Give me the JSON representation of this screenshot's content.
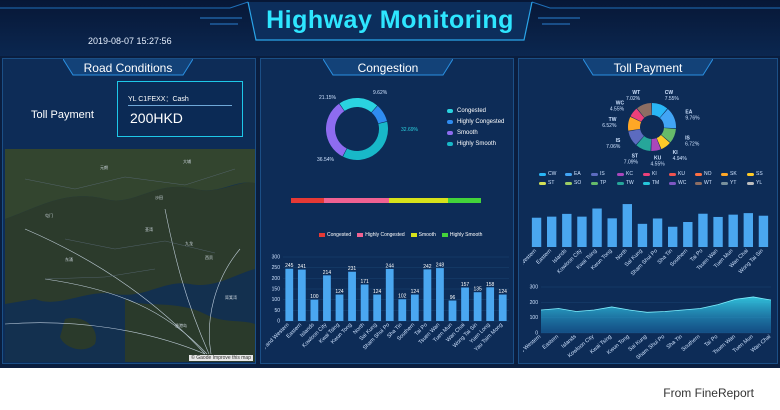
{
  "header": {
    "title": "Highway Monitoring",
    "datetime": "2019-08-07 15:27:56"
  },
  "road": {
    "title": "Road Conditions",
    "toll_label": "Toll Payment",
    "plate": "YL C1FEXX：Cash",
    "amount": "200HKD",
    "map_credit": "© Gaode Improve this map"
  },
  "congestion": {
    "title": "Congestion",
    "donut_legend": [
      "Congested",
      "Highly Congested",
      "Smooth",
      "Highly Smooth"
    ],
    "bar_legend": [
      "Congested",
      "Highly Congested",
      "Smooth",
      "Highly Smooth"
    ],
    "colors": {
      "congested": "#2ad3e0",
      "highly_congested": "#2f8cf0",
      "smooth": "#8e6cf0",
      "highly_smooth": "#18b8c8",
      "bar": "#4aa7f0"
    },
    "donut_labels": [
      "21.15%",
      "9.62%",
      "32.69%",
      "36.54%"
    ]
  },
  "toll": {
    "title": "Toll Payment",
    "pie_labels": [
      {
        "code": "WT",
        "pct": "7.02%"
      },
      {
        "code": "WC",
        "pct": "4.55%"
      },
      {
        "code": "CW",
        "pct": "7.55%"
      },
      {
        "code": "EA",
        "pct": "9.76%"
      },
      {
        "code": "IS",
        "pct": "6.72%"
      },
      {
        "code": "TW",
        "pct": "6.52%"
      },
      {
        "code": "KI",
        "pct": "4.94%"
      },
      {
        "code": "KU",
        "pct": "4.55%"
      },
      {
        "code": "ST",
        "pct": "7.09%"
      },
      {
        "code": "IS",
        "pct": "7.06%"
      }
    ],
    "legend": [
      "CW",
      "EA",
      "IS",
      "KC",
      "KI",
      "KU",
      "NO",
      "SK",
      "SS",
      "ST",
      "SO",
      "TP",
      "TW",
      "TM",
      "WC",
      "WT",
      "YT",
      "YL"
    ],
    "legend_colors": [
      "#29b6f6",
      "#42a5f5",
      "#5c6bc0",
      "#ab47bc",
      "#ec407a",
      "#ef5350",
      "#ff7043",
      "#ffa726",
      "#ffca28",
      "#d4e157",
      "#9ccc65",
      "#66bb6a",
      "#26a69a",
      "#26c6da",
      "#7e57c2",
      "#8d6e63",
      "#78909c",
      "#bdbdbd"
    ]
  },
  "chart_data": [
    {
      "type": "donut",
      "title": "Congestion",
      "labels": [
        "Congested",
        "Highly Congested",
        "Smooth",
        "Highly Smooth"
      ],
      "values": [
        21.15,
        9.62,
        32.69,
        36.54
      ]
    },
    {
      "type": "bar",
      "categories": [
        "Central and Western",
        "Eastern",
        "Islands",
        "Kowloon City",
        "Kwai Tsing",
        "Kwun Tong",
        "North",
        "Sai Kung",
        "Sham Shui Po",
        "Sha Tin",
        "Southern",
        "Tai Po",
        "Tsuen Wan",
        "Tuen Mun",
        "Wan Chai",
        "Wong Tai Sin",
        "Yuen Long",
        "Yau Tsim Mong"
      ],
      "values": [
        245,
        241,
        100,
        214,
        124,
        231,
        171,
        124,
        244,
        102,
        124,
        242,
        248,
        96,
        157,
        135,
        158,
        124
      ],
      "yticks": [
        0,
        50,
        100,
        150,
        200,
        250,
        300
      ],
      "ylim": [
        0,
        300
      ]
    },
    {
      "type": "pie",
      "title": "Toll Payment",
      "labels": [
        "CW",
        "EA",
        "IS",
        "KI",
        "KU",
        "ST",
        "IS",
        "TW",
        "WC",
        "WT"
      ],
      "values": [
        7.55,
        9.76,
        6.72,
        4.94,
        4.55,
        7.09,
        7.06,
        6.52,
        4.55,
        7.02
      ]
    },
    {
      "type": "bar",
      "categories": [
        "Central and Western",
        "Eastern",
        "Islands",
        "Kowloon City",
        "Kwai Tsing",
        "Kwun Tong",
        "North",
        "Sai Kung",
        "Sham Shui Po",
        "Sha Tin",
        "Southern",
        "Tai Po",
        "Tsuen Wan",
        "Tuen Mun",
        "Wan Chai",
        "Wong Tai Sin"
      ],
      "values": [
        191,
        198,
        216,
        198,
        251,
        187,
        280,
        151,
        186,
        132,
        163,
        217,
        196,
        211,
        221,
        204
      ],
      "ylim": [
        0,
        300
      ]
    },
    {
      "type": "area",
      "categories": [
        "Central and Western",
        "Eastern",
        "Islands",
        "Kowloon City",
        "Kwai Tsing",
        "Kwun Tong",
        "Sai Kung",
        "Sham Shui Po",
        "Sha Tin",
        "Southern",
        "Tai Po",
        "Tsuen Wan",
        "Tuen Mun",
        "Wan Chai"
      ],
      "values": [
        150,
        160,
        140,
        150,
        170,
        150,
        135,
        140,
        150,
        160,
        185,
        220,
        235,
        215
      ],
      "yticks": [
        0,
        100,
        200,
        300
      ],
      "ylim": [
        0,
        300
      ]
    }
  ]
}
